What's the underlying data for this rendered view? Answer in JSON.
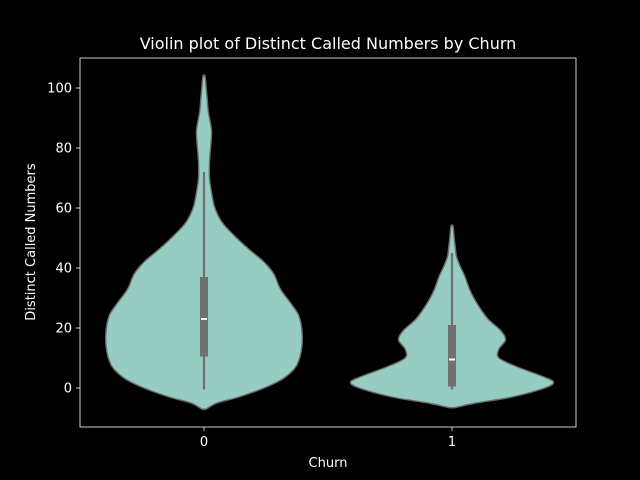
{
  "chart_data": {
    "type": "violin",
    "title": "Violin plot of Distinct Called Numbers by Churn",
    "xlabel": "Churn",
    "ylabel": "Distinct Called Numbers",
    "categories": [
      "0",
      "1"
    ],
    "ylim": [
      -13,
      110
    ],
    "yticks": [
      0,
      20,
      40,
      60,
      80,
      100
    ],
    "grid": false,
    "colors": {
      "background": "#000000",
      "violin_fill": "#96CCC2",
      "violin_edge": "#6b6b6b",
      "box": "#6f6f6f",
      "median": "#ffffff",
      "text": "#ffffff",
      "axes": "#ffffff"
    },
    "violins": [
      {
        "category": "0",
        "density": [
          [
            -7,
            0.02
          ],
          [
            -5,
            0.12
          ],
          [
            -3,
            0.32
          ],
          [
            0,
            0.55
          ],
          [
            3,
            0.72
          ],
          [
            7,
            0.84
          ],
          [
            12,
            0.89
          ],
          [
            18,
            0.9
          ],
          [
            24,
            0.87
          ],
          [
            28,
            0.8
          ],
          [
            33,
            0.7
          ],
          [
            38,
            0.64
          ],
          [
            42,
            0.55
          ],
          [
            46,
            0.42
          ],
          [
            50,
            0.3
          ],
          [
            55,
            0.17
          ],
          [
            60,
            0.1
          ],
          [
            65,
            0.07
          ],
          [
            70,
            0.05
          ],
          [
            75,
            0.05
          ],
          [
            80,
            0.06
          ],
          [
            85,
            0.07
          ],
          [
            88,
            0.06
          ],
          [
            92,
            0.04
          ],
          [
            96,
            0.03
          ],
          [
            100,
            0.02
          ],
          [
            104,
            0.01
          ]
        ],
        "box": {
          "q1": 10.5,
          "median": 23,
          "q3": 37,
          "whisker_low": -0.5,
          "whisker_high": 72
        }
      },
      {
        "category": "1",
        "density": [
          [
            -6.5,
            0.03
          ],
          [
            -5,
            0.22
          ],
          [
            -3,
            0.55
          ],
          [
            0,
            0.85
          ],
          [
            2,
            0.93
          ],
          [
            4,
            0.82
          ],
          [
            7,
            0.6
          ],
          [
            10,
            0.43
          ],
          [
            13,
            0.43
          ],
          [
            16,
            0.49
          ],
          [
            19,
            0.45
          ],
          [
            23,
            0.33
          ],
          [
            27,
            0.25
          ],
          [
            30,
            0.2
          ],
          [
            33,
            0.16
          ],
          [
            37,
            0.12
          ],
          [
            41,
            0.07
          ],
          [
            44,
            0.04
          ],
          [
            47,
            0.03
          ],
          [
            50,
            0.02
          ],
          [
            54,
            0.01
          ]
        ],
        "box": {
          "q1": 0.5,
          "median": 9.5,
          "q3": 21,
          "whisker_low": -0.5,
          "whisker_high": 45
        }
      }
    ]
  }
}
